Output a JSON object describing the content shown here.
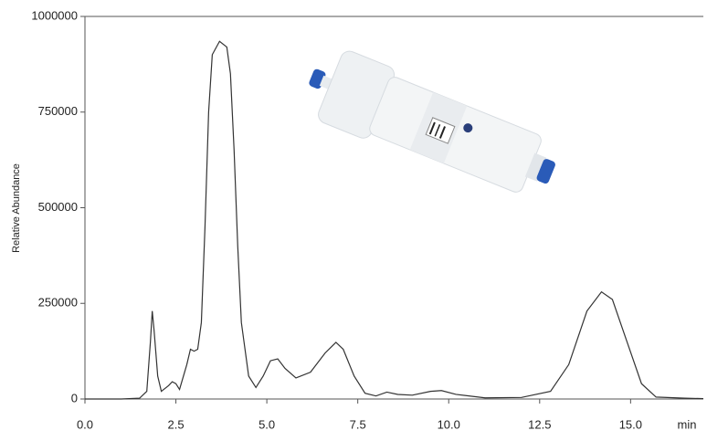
{
  "chart_data": {
    "type": "line",
    "y_label": "Relative Abundance",
    "x_label": "min",
    "x": [
      0,
      1.0,
      1.5,
      1.7,
      1.8,
      1.85,
      1.9,
      2.0,
      2.1,
      2.3,
      2.4,
      2.5,
      2.6,
      2.8,
      2.9,
      3.0,
      3.1,
      3.2,
      3.3,
      3.4,
      3.5,
      3.7,
      3.9,
      4.0,
      4.1,
      4.2,
      4.3,
      4.5,
      4.7,
      4.9,
      5.1,
      5.3,
      5.5,
      5.8,
      6.2,
      6.6,
      6.9,
      7.1,
      7.4,
      7.7,
      8.0,
      8.3,
      8.6,
      9.0,
      9.5,
      9.8,
      10.2,
      11.0,
      12.0,
      12.8,
      13.3,
      13.8,
      14.2,
      14.5,
      14.9,
      15.3,
      15.7,
      16.5,
      17.0
    ],
    "series": [
      {
        "color": "#333333",
        "values": [
          0,
          0,
          2000,
          20000,
          150000,
          230000,
          180000,
          60000,
          20000,
          35000,
          45000,
          40000,
          25000,
          90000,
          130000,
          125000,
          130000,
          200000,
          450000,
          750000,
          900000,
          935000,
          920000,
          850000,
          650000,
          400000,
          200000,
          60000,
          30000,
          60000,
          100000,
          105000,
          80000,
          55000,
          70000,
          120000,
          148000,
          130000,
          60000,
          15000,
          8000,
          18000,
          12000,
          10000,
          20000,
          22000,
          12000,
          3000,
          4000,
          20000,
          90000,
          230000,
          280000,
          260000,
          150000,
          40000,
          5000,
          2000,
          1000
        ]
      }
    ],
    "xlim": [
      0,
      17
    ],
    "ylim": [
      0,
      1000000
    ],
    "xticks": [
      {
        "value": 0,
        "label": "0.0"
      },
      {
        "value": 2.5,
        "label": "2.5"
      },
      {
        "value": 5,
        "label": "5.0"
      },
      {
        "value": 7.5,
        "label": "7.5"
      },
      {
        "value": 10,
        "label": "10.0"
      },
      {
        "value": 12.5,
        "label": "12.5"
      },
      {
        "value": 15,
        "label": "15.0"
      }
    ],
    "yticks": [
      0,
      250000,
      500000,
      750000,
      1000000
    ]
  }
}
